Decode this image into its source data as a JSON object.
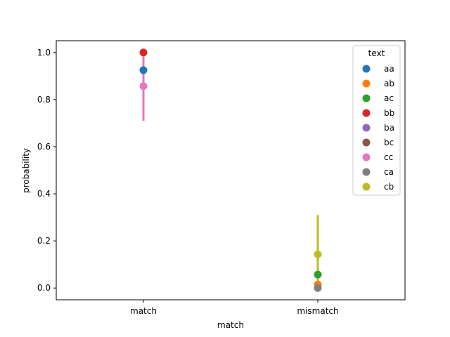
{
  "chart_data": {
    "type": "scatter",
    "title": "",
    "xlabel": "match",
    "ylabel": "probability",
    "categories": [
      "match",
      "mismatch"
    ],
    "ylim": [
      -0.05,
      1.05
    ],
    "yticks": [
      0.0,
      0.2,
      0.4,
      0.6,
      0.8,
      1.0
    ],
    "ytick_labels": [
      "0.0",
      "0.2",
      "0.4",
      "0.6",
      "0.8",
      "1.0"
    ],
    "grid": false,
    "legend": {
      "title": "text",
      "position": "upper right"
    },
    "series": [
      {
        "name": "aa",
        "color": "#1f77b4",
        "points": [
          {
            "x": "match",
            "y": 0.925
          }
        ]
      },
      {
        "name": "ab",
        "color": "#ff7f0e",
        "points": [
          {
            "x": "mismatch",
            "y": 0.015
          }
        ]
      },
      {
        "name": "ac",
        "color": "#2ca02c",
        "points": [
          {
            "x": "mismatch",
            "y": 0.057
          }
        ]
      },
      {
        "name": "bb",
        "color": "#d62728",
        "points": [
          {
            "x": "match",
            "y": 1.0
          }
        ]
      },
      {
        "name": "ba",
        "color": "#9467bd",
        "points": []
      },
      {
        "name": "bc",
        "color": "#8c564b",
        "points": []
      },
      {
        "name": "cc",
        "color": "#e377c2",
        "points": [
          {
            "x": "match",
            "y": 0.857,
            "ci": [
              0.71,
              1.0
            ]
          }
        ]
      },
      {
        "name": "ca",
        "color": "#7f7f7f",
        "points": [
          {
            "x": "mismatch",
            "y": 0.0
          }
        ]
      },
      {
        "name": "cb",
        "color": "#bcbd22",
        "points": [
          {
            "x": "mismatch",
            "y": 0.143,
            "ci": [
              0.0,
              0.31
            ]
          }
        ]
      }
    ]
  }
}
